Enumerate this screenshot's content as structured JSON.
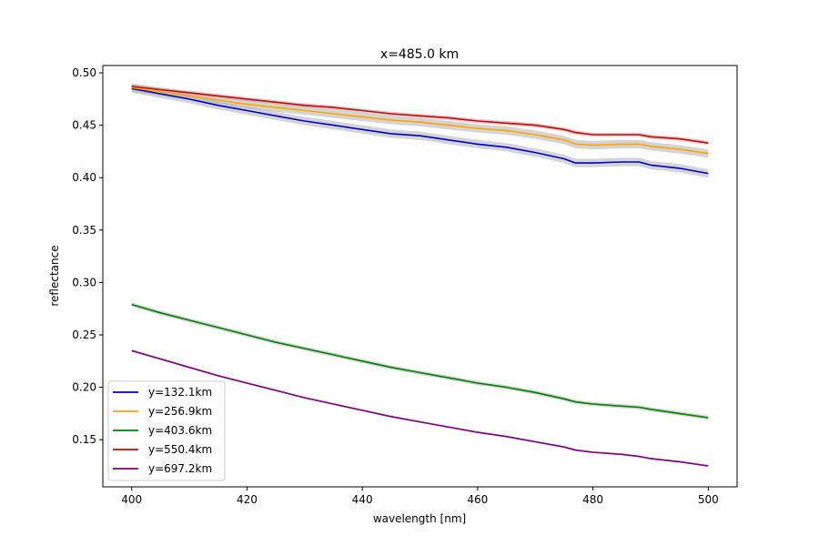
{
  "chart_data": {
    "type": "line",
    "title": "x=485.0 km",
    "xlabel": "wavelength [nm]",
    "ylabel": "reflectance",
    "xlim": [
      395,
      505
    ],
    "ylim": [
      0.105,
      0.507
    ],
    "xticks": [
      400,
      420,
      440,
      460,
      480,
      500
    ],
    "xtick_labels": [
      "400",
      "420",
      "440",
      "460",
      "480",
      "500"
    ],
    "yticks": [
      0.15,
      0.2,
      0.25,
      0.3,
      0.35,
      0.4,
      0.45,
      0.5
    ],
    "ytick_labels": [
      "0.15",
      "0.20",
      "0.25",
      "0.30",
      "0.35",
      "0.40",
      "0.45",
      "0.50"
    ],
    "grid": false,
    "legend_position": "lower-left",
    "band_color": "#b0b0b0",
    "series": [
      {
        "name": "y=132.1km",
        "color": "#0000cc",
        "band": 0.004,
        "x": [
          400,
          405,
          410,
          415,
          420,
          425,
          430,
          435,
          440,
          445,
          450,
          455,
          460,
          465,
          470,
          475,
          477,
          480,
          485,
          488,
          490,
          495,
          500
        ],
        "y": [
          0.485,
          0.48,
          0.475,
          0.469,
          0.464,
          0.459,
          0.454,
          0.45,
          0.446,
          0.442,
          0.44,
          0.436,
          0.432,
          0.429,
          0.424,
          0.418,
          0.414,
          0.414,
          0.415,
          0.415,
          0.412,
          0.409,
          0.404
        ]
      },
      {
        "name": "y=256.9km",
        "color": "#ffa500",
        "band": 0.004,
        "x": [
          400,
          405,
          410,
          415,
          420,
          425,
          430,
          435,
          440,
          445,
          450,
          455,
          460,
          465,
          470,
          475,
          477,
          480,
          485,
          488,
          490,
          495,
          500
        ],
        "y": [
          0.486,
          0.482,
          0.478,
          0.474,
          0.47,
          0.467,
          0.464,
          0.461,
          0.458,
          0.455,
          0.453,
          0.45,
          0.447,
          0.445,
          0.441,
          0.436,
          0.432,
          0.431,
          0.432,
          0.432,
          0.43,
          0.427,
          0.423
        ]
      },
      {
        "name": "y=403.6km",
        "color": "#008000",
        "band": 0.002,
        "x": [
          400,
          405,
          410,
          415,
          420,
          425,
          430,
          435,
          440,
          445,
          450,
          455,
          460,
          465,
          470,
          475,
          477,
          480,
          485,
          488,
          490,
          495,
          500
        ],
        "y": [
          0.279,
          0.271,
          0.264,
          0.257,
          0.25,
          0.243,
          0.237,
          0.231,
          0.225,
          0.219,
          0.214,
          0.209,
          0.204,
          0.2,
          0.195,
          0.189,
          0.186,
          0.184,
          0.182,
          0.181,
          0.179,
          0.175,
          0.171
        ]
      },
      {
        "name": "y=550.4km",
        "color": "#dd0000",
        "band": 0.002,
        "x": [
          400,
          405,
          410,
          415,
          420,
          425,
          430,
          435,
          440,
          445,
          450,
          455,
          460,
          465,
          470,
          475,
          477,
          480,
          485,
          488,
          490,
          495,
          500
        ],
        "y": [
          0.487,
          0.484,
          0.481,
          0.478,
          0.475,
          0.472,
          0.469,
          0.467,
          0.464,
          0.461,
          0.459,
          0.457,
          0.454,
          0.452,
          0.45,
          0.446,
          0.443,
          0.441,
          0.441,
          0.441,
          0.439,
          0.437,
          0.433
        ]
      },
      {
        "name": "y=697.2km",
        "color": "#800080",
        "band": 0.001,
        "x": [
          400,
          405,
          410,
          415,
          420,
          425,
          430,
          435,
          440,
          445,
          450,
          455,
          460,
          465,
          470,
          475,
          477,
          480,
          485,
          488,
          490,
          495,
          500
        ],
        "y": [
          0.235,
          0.227,
          0.219,
          0.211,
          0.204,
          0.197,
          0.19,
          0.184,
          0.178,
          0.172,
          0.167,
          0.162,
          0.157,
          0.153,
          0.148,
          0.143,
          0.14,
          0.138,
          0.136,
          0.134,
          0.132,
          0.129,
          0.125
        ]
      }
    ]
  }
}
